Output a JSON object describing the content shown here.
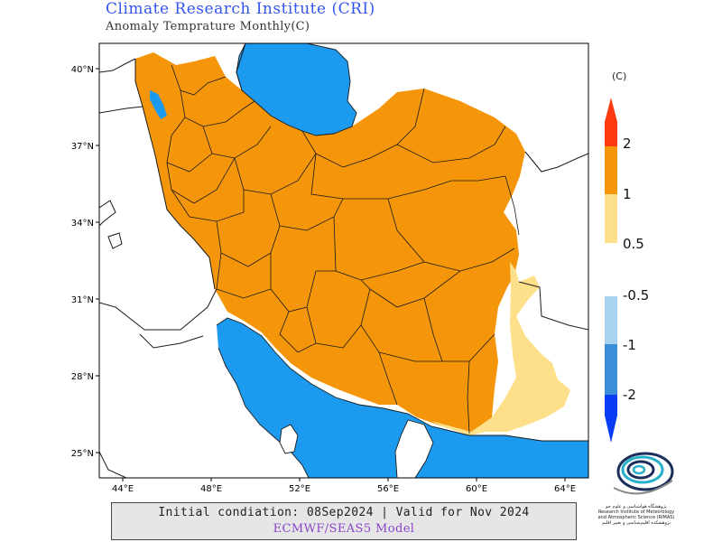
{
  "header": {
    "title": "Climate Research Institute (CRI)",
    "subtitle": "Anomaly Temprature Monthly(C)"
  },
  "axes": {
    "lat_labels": [
      "40°N",
      "37°N",
      "34°N",
      "31°N",
      "28°N",
      "25°N"
    ],
    "lon_labels": [
      "44°E",
      "48°E",
      "52°E",
      "56°E",
      "60°E",
      "64°E"
    ]
  },
  "legend": {
    "unit": "(C)",
    "positive_labels": [
      "2",
      "1",
      "0.5"
    ],
    "negative_labels": [
      "-0.5",
      "-1",
      "-2"
    ],
    "colors": {
      "over2": "#ff3a10",
      "one_to_two": "#f5960a",
      "half_to_one": "#ffe08a",
      "neg_half": "#a9d2f0",
      "neg_one": "#3a8ed8",
      "below_neg_two": "#0a3cf5"
    }
  },
  "map": {
    "colors": {
      "sea": "#1c9af0",
      "land_outside": "#ffffff",
      "anomaly_main": "#f5960a",
      "anomaly_low": "#ffe08a"
    }
  },
  "footer": {
    "line1": "Initial condiation: 08Sep2024 | Valid for Nov 2024",
    "line2": "ECMWF/SEAS5 Model"
  },
  "logo": {
    "text_fa": "پژوهشگاه هواشناسی و علوم جو",
    "text_en": "Research Institute of Meteorology and Atmospheric Science (RIMAS)",
    "text_fa2": "پژوهشکده اقلیم‌شناسی و تغییر اقلیم"
  }
}
